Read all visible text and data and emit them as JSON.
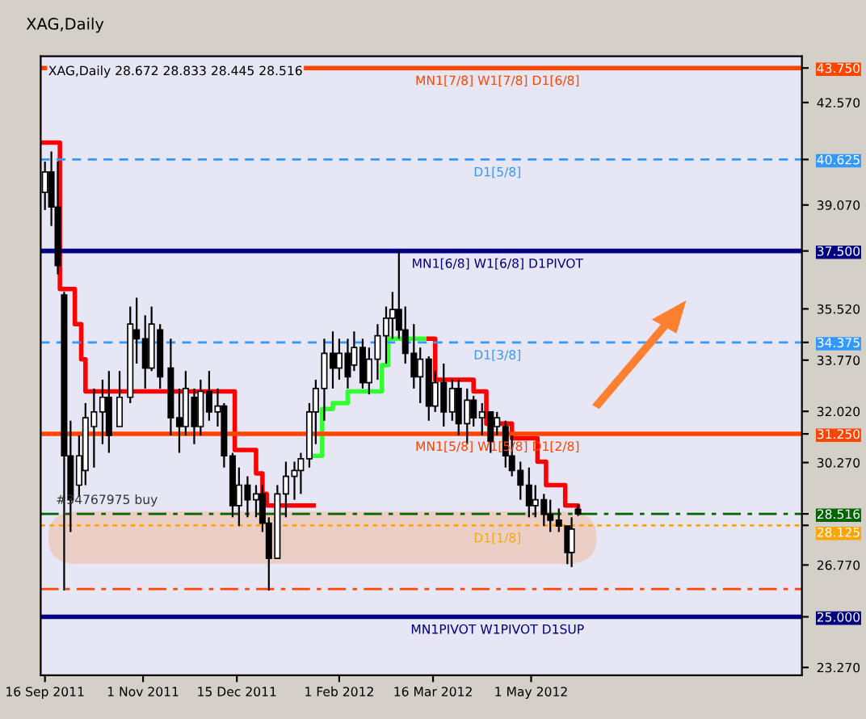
{
  "chart_data": {
    "type": "candlestick",
    "title": "XAG,Daily",
    "subtitle": "XAG,Daily 28.672 28.833 28.445 28.516",
    "x": [
      "2011-09-16",
      "2011-09-19",
      "2011-09-22",
      "2011-09-25",
      "2011-09-28",
      "2011-10-02",
      "2011-10-05",
      "2011-10-09",
      "2011-10-13",
      "2011-10-16",
      "2011-10-21",
      "2011-10-26",
      "2011-10-29",
      "2011-11-02",
      "2011-11-05",
      "2011-11-09",
      "2011-11-14",
      "2011-11-18",
      "2011-11-21",
      "2011-11-25",
      "2011-11-28",
      "2011-12-02",
      "2011-12-06",
      "2011-12-09",
      "2011-12-13",
      "2011-12-16",
      "2011-12-20",
      "2011-12-24",
      "2011-12-27",
      "2011-12-30",
      "2012-01-03",
      "2012-01-07",
      "2012-01-11",
      "2012-01-14",
      "2012-01-18",
      "2012-01-21",
      "2012-01-25",
      "2012-01-29",
      "2012-02-01",
      "2012-02-05",
      "2012-02-08",
      "2012-02-12",
      "2012-02-15",
      "2012-02-19",
      "2012-02-23",
      "2012-02-26",
      "2012-02-29",
      "2012-03-03",
      "2012-03-07",
      "2012-03-10",
      "2012-03-14",
      "2012-03-17",
      "2012-03-21",
      "2012-03-25",
      "2012-03-28",
      "2012-04-01",
      "2012-04-04",
      "2012-04-08",
      "2012-04-12",
      "2012-04-15",
      "2012-04-19",
      "2012-04-22",
      "2012-04-26",
      "2012-04-30",
      "2012-05-03",
      "2012-05-07",
      "2012-05-10",
      "2012-05-14",
      "2012-05-18",
      "2012-05-20",
      "2012-05-23"
    ],
    "ohlc": [
      [
        39.5,
        40.55,
        38.9,
        40.2
      ],
      [
        40.2,
        40.9,
        38.35,
        39.0
      ],
      [
        39.0,
        40.55,
        36.7,
        37.0
      ],
      [
        36.0,
        36.1,
        25.9,
        30.5
      ],
      [
        30.5,
        31.7,
        27.9,
        29.0
      ],
      [
        29.5,
        31.2,
        29.1,
        30.5
      ],
      [
        30.0,
        32.3,
        29.5,
        31.8
      ],
      [
        31.5,
        32.8,
        30.1,
        32.0
      ],
      [
        32.0,
        33.1,
        30.9,
        32.5
      ],
      [
        32.5,
        33.4,
        30.6,
        31.2
      ],
      [
        31.5,
        33.4,
        31.5,
        32.5
      ],
      [
        32.5,
        35.6,
        32.3,
        35.0
      ],
      [
        34.8,
        35.9,
        33.65,
        34.5
      ],
      [
        34.5,
        35.3,
        32.8,
        33.5
      ],
      [
        33.5,
        35.6,
        33.4,
        35.0
      ],
      [
        34.8,
        35.0,
        32.8,
        33.2
      ],
      [
        33.5,
        34.5,
        31.2,
        31.8
      ],
      [
        31.8,
        32.8,
        30.6,
        31.5
      ],
      [
        31.5,
        33.4,
        31.2,
        32.8
      ],
      [
        32.5,
        32.8,
        30.9,
        31.5
      ],
      [
        31.5,
        33.1,
        31.2,
        32.7
      ],
      [
        32.7,
        33.4,
        31.7,
        32.0
      ],
      [
        32.0,
        32.8,
        31.5,
        32.2
      ],
      [
        32.2,
        32.3,
        30.1,
        30.5
      ],
      [
        30.5,
        30.6,
        28.4,
        28.8
      ],
      [
        28.8,
        30.1,
        28.1,
        29.5
      ],
      [
        29.5,
        29.8,
        28.4,
        29.0
      ],
      [
        29.0,
        29.5,
        28.4,
        29.2
      ],
      [
        29.2,
        29.5,
        27.9,
        28.2
      ],
      [
        28.2,
        28.4,
        25.9,
        27.0
      ],
      [
        27.0,
        29.5,
        27.0,
        29.2
      ],
      [
        29.2,
        30.3,
        28.4,
        29.8
      ],
      [
        29.8,
        30.3,
        29.0,
        30.0
      ],
      [
        30.0,
        30.6,
        29.2,
        30.4
      ],
      [
        30.4,
        32.3,
        30.1,
        32.0
      ],
      [
        32.0,
        33.1,
        30.9,
        32.8
      ],
      [
        32.8,
        34.5,
        31.7,
        34.0
      ],
      [
        34.0,
        34.75,
        32.8,
        33.5
      ],
      [
        33.5,
        34.5,
        33.1,
        34.0
      ],
      [
        34.0,
        34.5,
        32.8,
        33.2
      ],
      [
        33.6,
        34.75,
        33.4,
        34.2
      ],
      [
        34.2,
        34.5,
        32.8,
        33.0
      ],
      [
        33.0,
        34.2,
        32.6,
        33.8
      ],
      [
        33.8,
        35.0,
        33.1,
        34.6
      ],
      [
        34.6,
        35.6,
        33.65,
        35.2
      ],
      [
        35.2,
        36.1,
        34.5,
        35.5
      ],
      [
        35.5,
        37.5,
        34.5,
        34.8
      ],
      [
        34.8,
        35.6,
        33.65,
        34.0
      ],
      [
        34.0,
        35.0,
        32.8,
        33.2
      ],
      [
        33.2,
        34.2,
        32.3,
        33.8
      ],
      [
        33.8,
        33.9,
        31.7,
        32.2
      ],
      [
        32.2,
        33.4,
        32.0,
        33.0
      ],
      [
        33.0,
        33.65,
        31.5,
        32.0
      ],
      [
        32.0,
        33.1,
        31.7,
        32.8
      ],
      [
        32.8,
        33.1,
        31.2,
        31.6
      ],
      [
        31.6,
        32.8,
        30.9,
        32.4
      ],
      [
        32.4,
        32.55,
        31.5,
        31.8
      ],
      [
        31.8,
        32.3,
        31.2,
        32.0
      ],
      [
        32.0,
        32.0,
        30.6,
        31.0
      ],
      [
        31.5,
        32.0,
        31.2,
        31.8
      ],
      [
        31.5,
        31.7,
        30.1,
        30.5
      ],
      [
        30.5,
        31.2,
        29.8,
        30.0
      ],
      [
        30.0,
        30.3,
        29.0,
        29.5
      ],
      [
        29.5,
        30.1,
        28.4,
        28.8
      ],
      [
        28.8,
        29.5,
        28.4,
        29.0
      ],
      [
        29.0,
        29.2,
        28.1,
        28.5
      ],
      [
        28.5,
        29.0,
        27.9,
        28.3
      ],
      [
        28.3,
        28.7,
        27.9,
        28.1
      ],
      [
        28.1,
        28.1,
        26.8,
        27.2
      ],
      [
        27.2,
        28.4,
        26.7,
        28.0
      ],
      [
        28.672,
        28.833,
        28.445,
        28.516
      ]
    ],
    "color": "#000000",
    "series": [
      {
        "type": "step",
        "color": "#ff0000",
        "x": [
          "2011-09-15",
          "2011-09-23",
          "2011-09-30",
          "2011-10-03",
          "2011-10-05",
          "2011-12-14",
          "2011-12-24",
          "2011-12-27",
          "2011-12-29",
          "2012-01-20"
        ],
        "values": [
          41.2,
          36.2,
          35.0,
          33.8,
          32.7,
          30.7,
          29.9,
          29.2,
          28.8,
          28.8
        ]
      },
      {
        "type": "step",
        "color": "#33ff33",
        "x": [
          "2012-01-20",
          "2012-01-24",
          "2012-01-29",
          "2012-02-05",
          "2012-02-21",
          "2012-02-24",
          "2012-03-14"
        ],
        "values": [
          30.5,
          32.1,
          32.3,
          32.7,
          33.6,
          34.5,
          34.5
        ]
      },
      {
        "type": "step",
        "color": "#ff0000",
        "x": [
          "2012-03-14",
          "2012-03-17",
          "2012-04-04",
          "2012-04-10",
          "2012-04-22",
          "2012-05-04",
          "2012-05-08",
          "2012-05-17",
          "2012-05-23"
        ],
        "values": [
          34.5,
          33.1,
          32.7,
          31.6,
          31.1,
          30.3,
          29.5,
          28.8,
          28.7
        ]
      }
    ],
    "ref_lines": [
      {
        "axis": "y",
        "value": 43.75,
        "label": "MN1[7/8] W1[7/8] D1[6/8]",
        "color": "#ff4500",
        "line_style": "solid"
      },
      {
        "axis": "y",
        "value": 40.625,
        "label": "D1[5/8]",
        "color": "#3399ff",
        "line_style": "dashed"
      },
      {
        "axis": "y",
        "value": 37.5,
        "label": "MN1[6/8] W1[6/8] D1PIVOT",
        "color": "#000080",
        "line_style": "solid"
      },
      {
        "axis": "y",
        "value": 34.375,
        "label": "D1[3/8]",
        "color": "#3399ff",
        "line_style": "dashed"
      },
      {
        "axis": "y",
        "value": 31.25,
        "label": "MN1[5/8] W1[5/8] D1[2/8]",
        "color": "#ff4500",
        "line_style": "solid"
      },
      {
        "axis": "y",
        "value": 28.516,
        "label": "#34767975 buy",
        "color": "#006400",
        "line_style": "dashdot"
      },
      {
        "axis": "y",
        "value": 28.125,
        "label": "D1[1/8]",
        "color": "#ffa500",
        "line_style": "dotted"
      },
      {
        "axis": "y",
        "value": 25.95,
        "color": "#ff4500",
        "line_style": "dashdot"
      },
      {
        "axis": "y",
        "value": 25.0,
        "label": "MN1PIVOT W1PIVOT D1SUP",
        "color": "#000080",
        "line_style": "solid"
      }
    ],
    "xlim": [
      "2011-09-14",
      "2012-09-05"
    ],
    "xticks": [
      {
        "value": "2011-09-16",
        "label": "16 Sep 2011"
      },
      {
        "value": "2011-11-01",
        "label": "1 Nov 2011"
      },
      {
        "value": "2011-12-15",
        "label": "15 Dec 2011"
      },
      {
        "value": "2012-02-01",
        "label": "1 Feb 2012"
      },
      {
        "value": "2012-03-16",
        "label": "16 Mar 2012"
      },
      {
        "value": "2012-05-01",
        "label": "1 May 2012"
      }
    ],
    "ylim": [
      23.0,
      44.15
    ],
    "yticks": [
      {
        "value": 23.27,
        "label": "23.270"
      },
      {
        "value": 25.0,
        "label": "25.000"
      },
      {
        "value": 26.77,
        "label": "26.770"
      },
      {
        "value": 28.125,
        "label": "28.125"
      },
      {
        "value": 28.516,
        "label": "28.516"
      },
      {
        "value": 30.27,
        "label": "30.270"
      },
      {
        "value": 31.25,
        "label": "31.250"
      },
      {
        "value": 32.02,
        "label": "32.020"
      },
      {
        "value": 33.77,
        "label": "33.770"
      },
      {
        "value": 34.375,
        "label": "34.375"
      },
      {
        "value": 35.52,
        "label": "35.520"
      },
      {
        "value": 37.5,
        "label": "37.500"
      },
      {
        "value": 39.07,
        "label": "39.070"
      },
      {
        "value": 40.625,
        "label": "40.625"
      },
      {
        "value": 42.57,
        "label": "42.570"
      },
      {
        "value": 43.75,
        "label": "43.750"
      }
    ],
    "grid": false,
    "legend": false
  }
}
